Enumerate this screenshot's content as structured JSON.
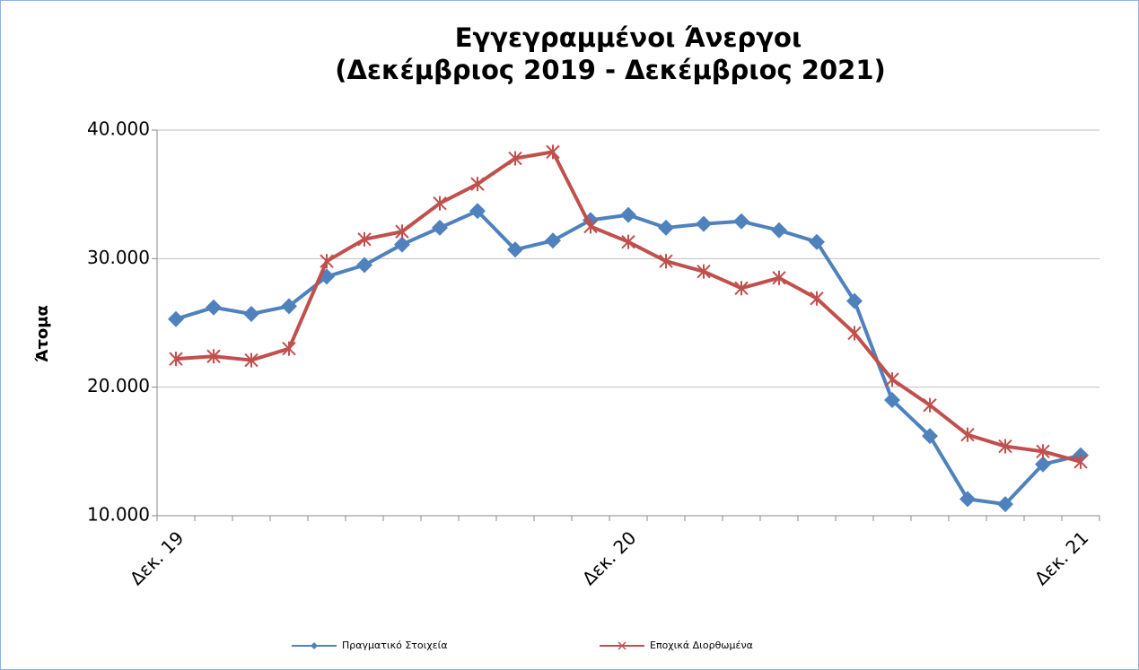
{
  "chart_data": {
    "type": "line",
    "title": [
      "Εγγεγραμμένοι Άνεργοι",
      "(Δεκέμβριος 2019 - Δεκέμβριος 2021)"
    ],
    "y_label": "Άτομα",
    "categories": [
      "Δεκ. 19",
      null,
      null,
      null,
      null,
      null,
      null,
      null,
      null,
      null,
      null,
      null,
      "Δεκ. 20",
      null,
      null,
      null,
      null,
      null,
      null,
      null,
      null,
      null,
      null,
      null,
      "Δεκ. 21"
    ],
    "series": [
      {
        "name": "Πραγματικό Στοιχεία",
        "color": "#4f81bd",
        "marker": "diamond",
        "values": [
          25300,
          26200,
          25700,
          26300,
          28600,
          29500,
          31100,
          32400,
          33700,
          30700,
          31400,
          33000,
          33400,
          32400,
          32700,
          32900,
          32200,
          31300,
          26700,
          19000,
          16200,
          11300,
          10900,
          14000,
          14700
        ]
      },
      {
        "name": "Εποχικά Διορθωμένα",
        "color": "#c0504d",
        "marker": "star",
        "values": [
          22200,
          22400,
          22100,
          23000,
          29800,
          31500,
          32100,
          34300,
          35800,
          37800,
          38300,
          32500,
          31300,
          29800,
          29000,
          27700,
          28500,
          26900,
          24200,
          20600,
          18600,
          16300,
          15400,
          15000,
          14200
        ]
      }
    ],
    "ylim": [
      10000,
      40000
    ],
    "yticks": [
      {
        "value": 10000,
        "label": "10.000"
      },
      {
        "value": 20000,
        "label": "20.000"
      },
      {
        "value": 30000,
        "label": "30.000"
      },
      {
        "value": 40000,
        "label": "40.000"
      }
    ],
    "grid": true,
    "legend": "bottom"
  }
}
